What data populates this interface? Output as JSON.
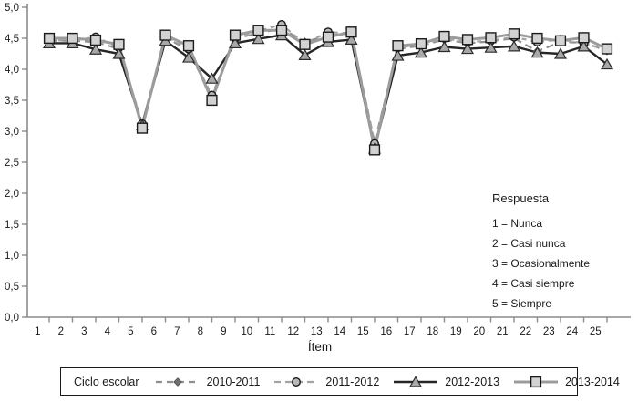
{
  "chart_data": {
    "type": "line",
    "title": "",
    "xlabel": "Ítem",
    "ylabel": "",
    "ylim": [
      0,
      5
    ],
    "y_tick_labels": [
      "0,0",
      "0,5",
      "1,0",
      "1,5",
      "2,0",
      "2,5",
      "3,0",
      "3,5",
      "4,0",
      "4,5",
      "5,0"
    ],
    "categories": [
      1,
      2,
      3,
      4,
      5,
      6,
      7,
      8,
      9,
      10,
      11,
      12,
      13,
      14,
      15,
      16,
      17,
      18,
      19,
      20,
      21,
      22,
      23,
      24,
      25
    ],
    "grid": false,
    "legend_position": "bottom",
    "legend_title": "Ciclo escolar",
    "series": [
      {
        "name": "2010-2011",
        "line": "dashed",
        "marker": "diamond",
        "color": "#8f8f8f",
        "marker_fill": "#6e6e6e",
        "values": [
          4.46,
          4.46,
          4.44,
          4.33,
          3.12,
          4.52,
          4.3,
          3.55,
          4.5,
          4.58,
          4.66,
          4.44,
          4.55,
          4.57,
          2.82,
          4.33,
          4.38,
          4.48,
          4.42,
          4.45,
          4.5,
          4.29,
          4.44,
          4.43,
          4.3
        ]
      },
      {
        "name": "2011-2012",
        "line": "dashed",
        "marker": "circle",
        "color": "#a3a3a3",
        "marker_fill": "#b8b8b8",
        "values": [
          4.47,
          4.46,
          4.52,
          4.35,
          3.12,
          4.53,
          4.33,
          3.58,
          4.5,
          4.62,
          4.72,
          4.41,
          4.6,
          4.58,
          2.8,
          4.35,
          4.4,
          4.5,
          4.44,
          4.46,
          4.52,
          4.44,
          4.48,
          4.42,
          4.31
        ]
      },
      {
        "name": "2012-2013",
        "line": "solid",
        "marker": "triangle",
        "color": "#262626",
        "marker_fill": "#a8a8a8",
        "values": [
          4.42,
          4.42,
          4.32,
          4.25,
          3.1,
          4.46,
          4.19,
          3.85,
          4.42,
          4.49,
          4.55,
          4.23,
          4.44,
          4.48,
          2.72,
          4.22,
          4.27,
          4.36,
          4.33,
          4.35,
          4.37,
          4.27,
          4.25,
          4.37,
          4.08
        ]
      },
      {
        "name": "2013-2014",
        "line": "solid",
        "marker": "square",
        "color": "#9c9c9c",
        "marker_fill": "#d2d2d2",
        "values": [
          4.5,
          4.5,
          4.47,
          4.4,
          3.05,
          4.55,
          4.38,
          3.5,
          4.55,
          4.63,
          4.63,
          4.4,
          4.52,
          4.6,
          2.7,
          4.38,
          4.41,
          4.53,
          4.48,
          4.51,
          4.57,
          4.5,
          4.46,
          4.51,
          4.33
        ]
      }
    ],
    "annotation": {
      "title": "Respuesta",
      "lines": [
        "1 = Nunca",
        "2 = Casi nunca",
        "3 = Ocasionalmente",
        "4 = Casi siempre",
        "5 = Siempre"
      ]
    },
    "axis_color": "#8c8c8c",
    "text_color": "#1a1a1a"
  }
}
